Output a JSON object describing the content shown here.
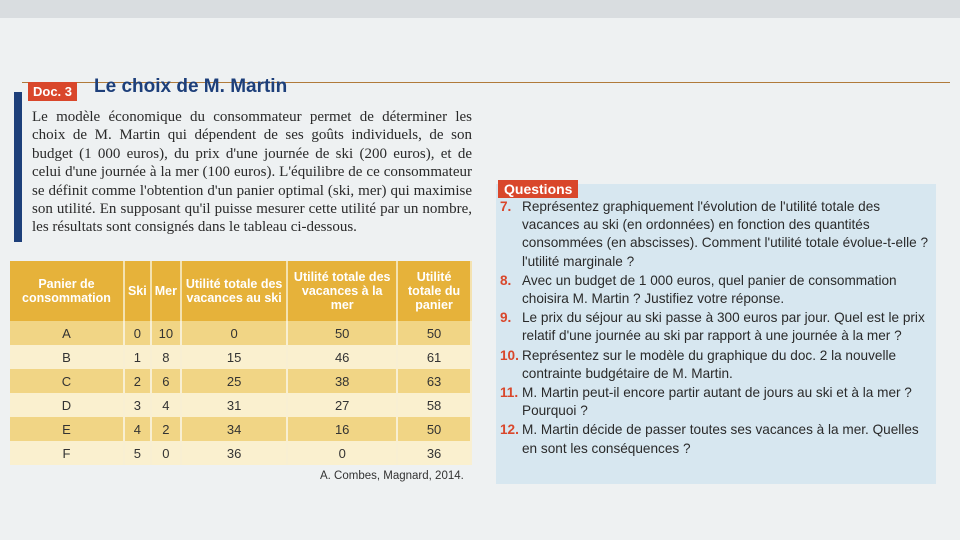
{
  "doc": {
    "label": "Doc. 3",
    "title": "Le choix de M. Martin",
    "text": "Le modèle économique du consommateur permet de déterminer les choix de M. Martin qui dépendent de ses goûts individuels, de son budget (1 000 euros), du prix d'une journée de ski (200 euros), et de celui d'une journée à la mer (100 euros). L'équilibre de ce consommateur se définit comme l'obtention d'un panier optimal (ski, mer) qui maximise son utilité. En supposant qu'il puisse mesurer cette utilité par un nombre, les résultats sont consignés dans le tableau ci-dessous.",
    "table": {
      "headers": [
        "Panier de consommation",
        "Ski",
        "Mer",
        "Utilité totale des vacances au ski",
        "Utilité totale des vacances à la mer",
        "Utilité totale du panier"
      ],
      "rows": [
        [
          "A",
          0,
          10,
          0,
          50,
          50
        ],
        [
          "B",
          1,
          8,
          15,
          46,
          61
        ],
        [
          "C",
          2,
          6,
          25,
          38,
          63
        ],
        [
          "D",
          3,
          4,
          31,
          27,
          58
        ],
        [
          "E",
          4,
          2,
          34,
          16,
          50
        ],
        [
          "F",
          5,
          0,
          36,
          0,
          36
        ]
      ]
    },
    "source": "A. Combes, Magnard, 2014."
  },
  "questions": {
    "label": "Questions",
    "items": [
      {
        "number": "7.",
        "text": "Représentez graphiquement l'évolution de l'utilité totale des vacances au ski (en ordonnées) en fonction des quantités consommées (en abscisses). Comment l'utilité totale évolue-t-elle ? l'utilité marginale ?"
      },
      {
        "number": "8.",
        "text": "Avec un budget de 1 000 euros, quel panier de consommation choisira M. Martin ? Justifiez votre réponse."
      },
      {
        "number": "9.",
        "text": "Le prix du séjour au ski passe à 300 euros par jour. Quel est le prix relatif d'une journée au ski par rapport à une journée à la mer ?"
      },
      {
        "number": "10.",
        "text": "Représentez sur le modèle du graphique du doc. 2 la nouvelle contrainte budgétaire de M. Martin."
      },
      {
        "number": "11.",
        "text": "M. Martin peut-il encore partir autant de jours au ski et à la mer ? Pourquoi ?"
      },
      {
        "number": "12.",
        "text": "M. Martin décide de passer toutes ses vacances à la mer. Quelles en sont les conséquences ?"
      }
    ]
  }
}
